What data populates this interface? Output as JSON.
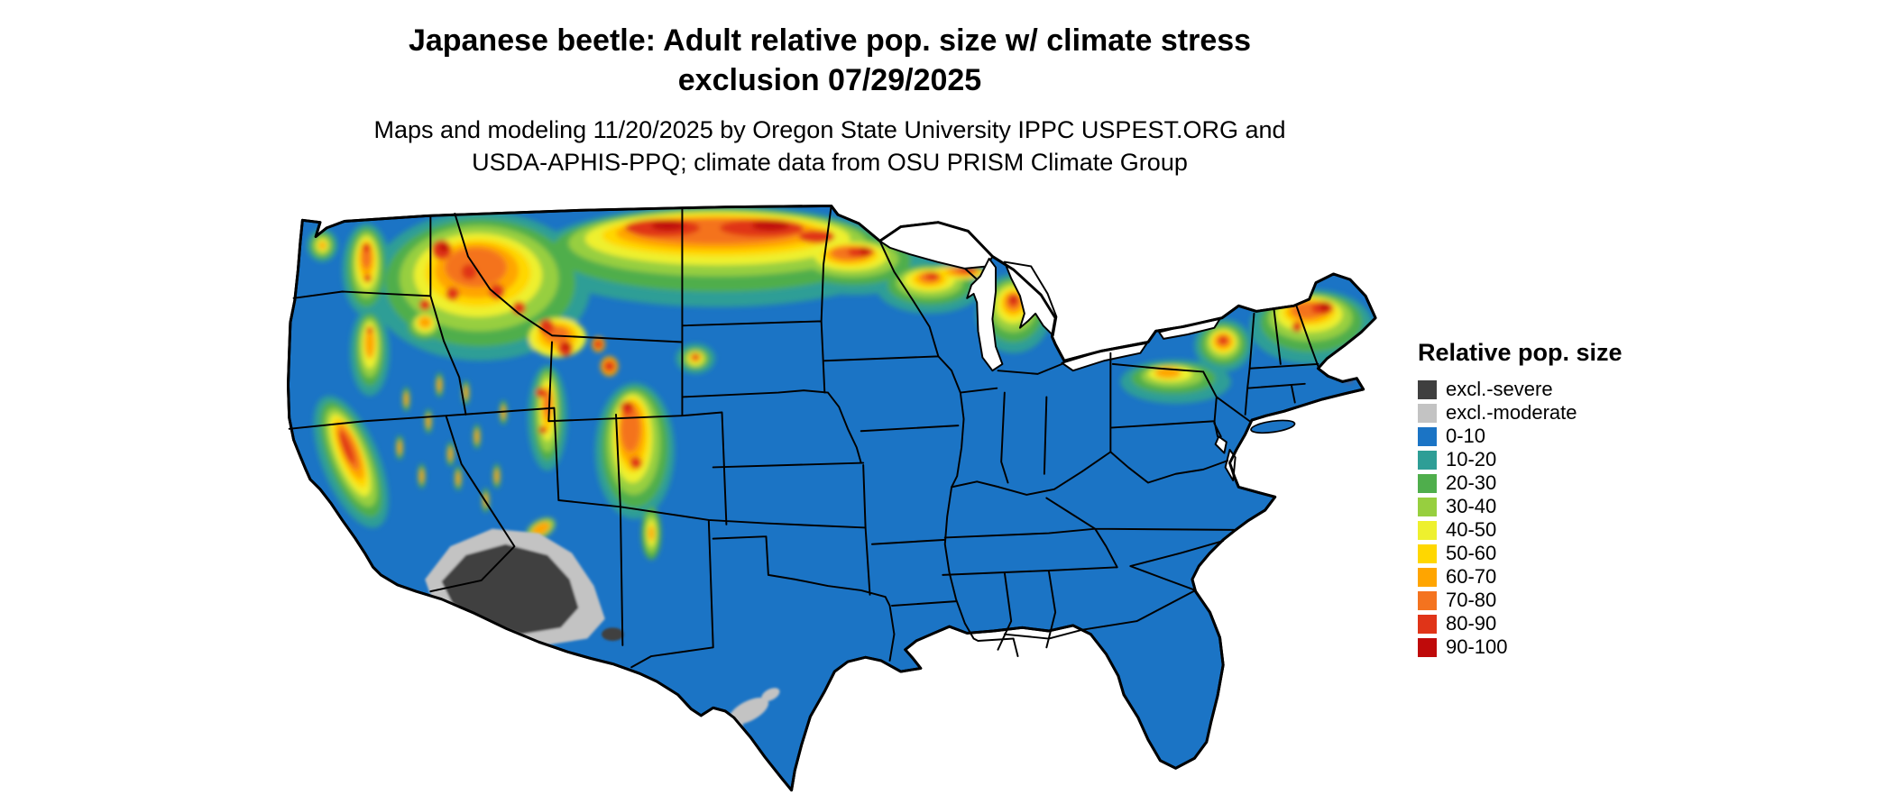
{
  "title": {
    "line1": "Japanese beetle: Adult relative pop. size w/ climate stress",
    "line2": "exclusion 07/29/2025"
  },
  "subtitle": {
    "line1": "Maps and modeling 11/20/2025 by Oregon State University IPPC USPEST.ORG and",
    "line2": "USDA-APHIS-PPQ; climate data from OSU PRISM Climate Group"
  },
  "legend": {
    "title": "Relative pop. size",
    "items": [
      {
        "label": "excl.-severe",
        "color": "excl_severe"
      },
      {
        "label": "excl.-moderate",
        "color": "excl_moderate"
      },
      {
        "label": "0-10",
        "color": "b0"
      },
      {
        "label": "10-20",
        "color": "b10"
      },
      {
        "label": "20-30",
        "color": "b20"
      },
      {
        "label": "30-40",
        "color": "b30"
      },
      {
        "label": "40-50",
        "color": "b40"
      },
      {
        "label": "50-60",
        "color": "b50"
      },
      {
        "label": "60-70",
        "color": "b60"
      },
      {
        "label": "70-80",
        "color": "b70"
      },
      {
        "label": "80-90",
        "color": "b80"
      },
      {
        "label": "90-100",
        "color": "b90"
      }
    ]
  },
  "palette": {
    "excl_severe": "#3f3f3f",
    "excl_moderate": "#c3c3c3",
    "b0": "#1b74c5",
    "b10": "#2e9e96",
    "b20": "#4fae4c",
    "b30": "#97cf3f",
    "b40": "#eef02e",
    "b50": "#ffd700",
    "b60": "#ffa500",
    "b70": "#f4731f",
    "b80": "#e03418",
    "b90": "#bf0a0a"
  },
  "map": {
    "region": "Continental United States",
    "water_color": "#ffffff"
  }
}
